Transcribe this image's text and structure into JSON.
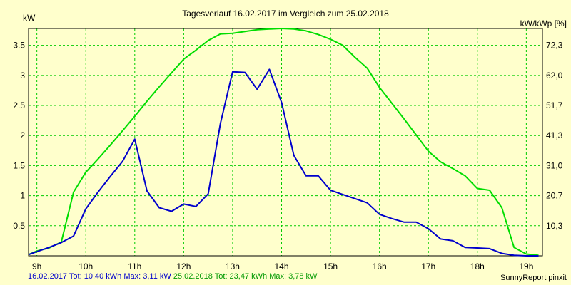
{
  "colors": {
    "background": "#ffffcc",
    "grid": "#00cc00",
    "series_1": "#0000cc",
    "series_2": "#00dd00"
  },
  "chart_data": {
    "type": "line",
    "title": "Tagesverlauf 16.02.2017 im Vergleich zum 25.02.2018",
    "ylabel_left": "kW",
    "ylabel_right": "kW/kWp [%]",
    "x_ticks": [
      "9h",
      "10h",
      "11h",
      "12h",
      "13h",
      "14h",
      "15h",
      "16h",
      "17h",
      "18h",
      "19h"
    ],
    "xlim": [
      8.83,
      19.33
    ],
    "ylim": [
      0,
      3.78
    ],
    "y_ticks": [
      "0.5",
      "1",
      "1.5",
      "2",
      "2.5",
      "3",
      "3.5"
    ],
    "y_right_ticks": [
      "10,3",
      "20,7",
      "31,0",
      "41,3",
      "51,7",
      "62,0",
      "72,3"
    ],
    "grid": true,
    "series": [
      {
        "x": [
          8.83,
          9.0,
          9.25,
          9.5,
          9.75,
          10.0,
          10.25,
          10.5,
          10.75,
          11.0,
          11.25,
          11.5,
          11.75,
          12.0,
          12.25,
          12.5,
          12.75,
          13.0,
          13.25,
          13.5,
          13.75,
          14.0,
          14.25,
          14.5,
          14.75,
          15.0,
          15.25,
          15.5,
          15.75,
          16.0,
          16.25,
          16.5,
          16.75,
          17.0,
          17.25,
          17.5,
          17.75,
          18.0,
          18.25,
          18.5,
          18.75,
          19.0,
          19.25
        ],
        "y": [
          0.02,
          0.07,
          0.14,
          0.22,
          0.33,
          0.78,
          1.06,
          1.32,
          1.57,
          1.94,
          1.08,
          0.8,
          0.74,
          0.86,
          0.82,
          1.03,
          2.2,
          3.06,
          3.05,
          2.77,
          3.1,
          2.55,
          1.67,
          1.33,
          1.33,
          1.09,
          1.02,
          0.95,
          0.88,
          0.69,
          0.62,
          0.56,
          0.56,
          0.45,
          0.28,
          0.25,
          0.14,
          0.13,
          0.12,
          0.04,
          0.01,
          0.0,
          0.0
        ]
      },
      {
        "x": [
          8.83,
          9.0,
          9.25,
          9.5,
          9.75,
          10.0,
          10.25,
          10.5,
          10.75,
          11.0,
          11.25,
          11.5,
          11.75,
          12.0,
          12.25,
          12.5,
          12.75,
          13.0,
          13.25,
          13.5,
          13.75,
          14.0,
          14.25,
          14.5,
          14.75,
          15.0,
          15.25,
          15.5,
          15.75,
          16.0,
          16.25,
          16.5,
          16.75,
          17.0,
          17.25,
          17.5,
          17.75,
          18.0,
          18.25,
          18.5,
          18.75,
          19.0,
          19.25
        ],
        "y": [
          0.02,
          0.08,
          0.13,
          0.23,
          1.06,
          1.39,
          1.61,
          1.84,
          2.08,
          2.32,
          2.57,
          2.81,
          3.04,
          3.27,
          3.42,
          3.58,
          3.69,
          3.7,
          3.73,
          3.76,
          3.77,
          3.78,
          3.77,
          3.74,
          3.68,
          3.6,
          3.5,
          3.3,
          3.12,
          2.8,
          2.54,
          2.28,
          2.01,
          1.74,
          1.56,
          1.45,
          1.33,
          1.12,
          1.09,
          0.8,
          0.14,
          0.03,
          0.01
        ]
      }
    ]
  },
  "footer": {
    "s1_date": "16.02.2017",
    "s1_stats": "Tot: 10,40 kWh Max: 3,11 kW",
    "s2_date": "25.02.2018",
    "s2_stats": "Tot: 23,47 kWh Max: 3,78 kW",
    "credit": "SunnyReport pinxit"
  }
}
